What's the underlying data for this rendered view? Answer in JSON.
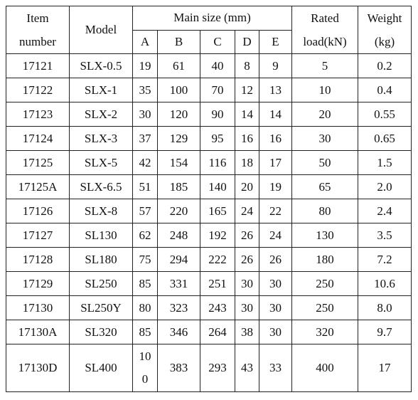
{
  "table": {
    "header": {
      "item_number": "Item number",
      "model": "Model",
      "main_size": "Main size (mm)",
      "columns": [
        "A",
        "B",
        "C",
        "D",
        "E"
      ],
      "rated_load": "Rated load(kN)",
      "weight": "Weight (kg)"
    },
    "rows": [
      [
        "17121",
        "SLX-0.5",
        "19",
        "61",
        "40",
        "8",
        "9",
        "5",
        "0.2"
      ],
      [
        "17122",
        "SLX-1",
        "35",
        "100",
        "70",
        "12",
        "13",
        "10",
        "0.4"
      ],
      [
        "17123",
        "SLX-2",
        "30",
        "120",
        "90",
        "14",
        "14",
        "20",
        "0.55"
      ],
      [
        "17124",
        "SLX-3",
        "37",
        "129",
        "95",
        "16",
        "16",
        "30",
        "0.65"
      ],
      [
        "17125",
        "SLX-5",
        "42",
        "154",
        "116",
        "18",
        "17",
        "50",
        "1.5"
      ],
      [
        "17125A",
        "SLX-6.5",
        "51",
        "185",
        "140",
        "20",
        "19",
        "65",
        "2.0"
      ],
      [
        "17126",
        "SLX-8",
        "57",
        "220",
        "165",
        "24",
        "22",
        "80",
        "2.4"
      ],
      [
        "17127",
        "SL130",
        "62",
        "248",
        "192",
        "26",
        "24",
        "130",
        "3.5"
      ],
      [
        "17128",
        "SL180",
        "75",
        "294",
        "222",
        "26",
        "26",
        "180",
        "7.2"
      ],
      [
        "17129",
        "SL250",
        "85",
        "331",
        "251",
        "30",
        "30",
        "250",
        "10.6"
      ],
      [
        "17130",
        "SL250Y",
        "80",
        "323",
        "243",
        "30",
        "30",
        "250",
        "8.0"
      ],
      [
        "17130A",
        "SL320",
        "85",
        "346",
        "264",
        "38",
        "30",
        "320",
        "9.7"
      ],
      [
        "17130D",
        "SL400",
        "100",
        "383",
        "293",
        "43",
        "33",
        "400",
        "17"
      ]
    ]
  }
}
